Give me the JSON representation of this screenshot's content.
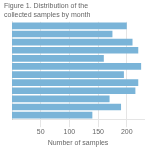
{
  "chart_data": {
    "type": "bar",
    "title": "Figure 1. Distribution of the collected samples by month",
    "orientation": "horizontal",
    "xlabel": "Number of samples",
    "categories": [
      null,
      null,
      null,
      null,
      null,
      null,
      null,
      null,
      null,
      null,
      null,
      null
    ],
    "values": [
      140,
      190,
      170,
      215,
      220,
      195,
      225,
      160,
      220,
      210,
      175,
      200
    ],
    "color": "#7ab4d8",
    "xlim": [
      0,
      230
    ],
    "xticks": [
      50,
      100,
      150,
      200
    ],
    "grid": true,
    "tick_labels": "x"
  }
}
